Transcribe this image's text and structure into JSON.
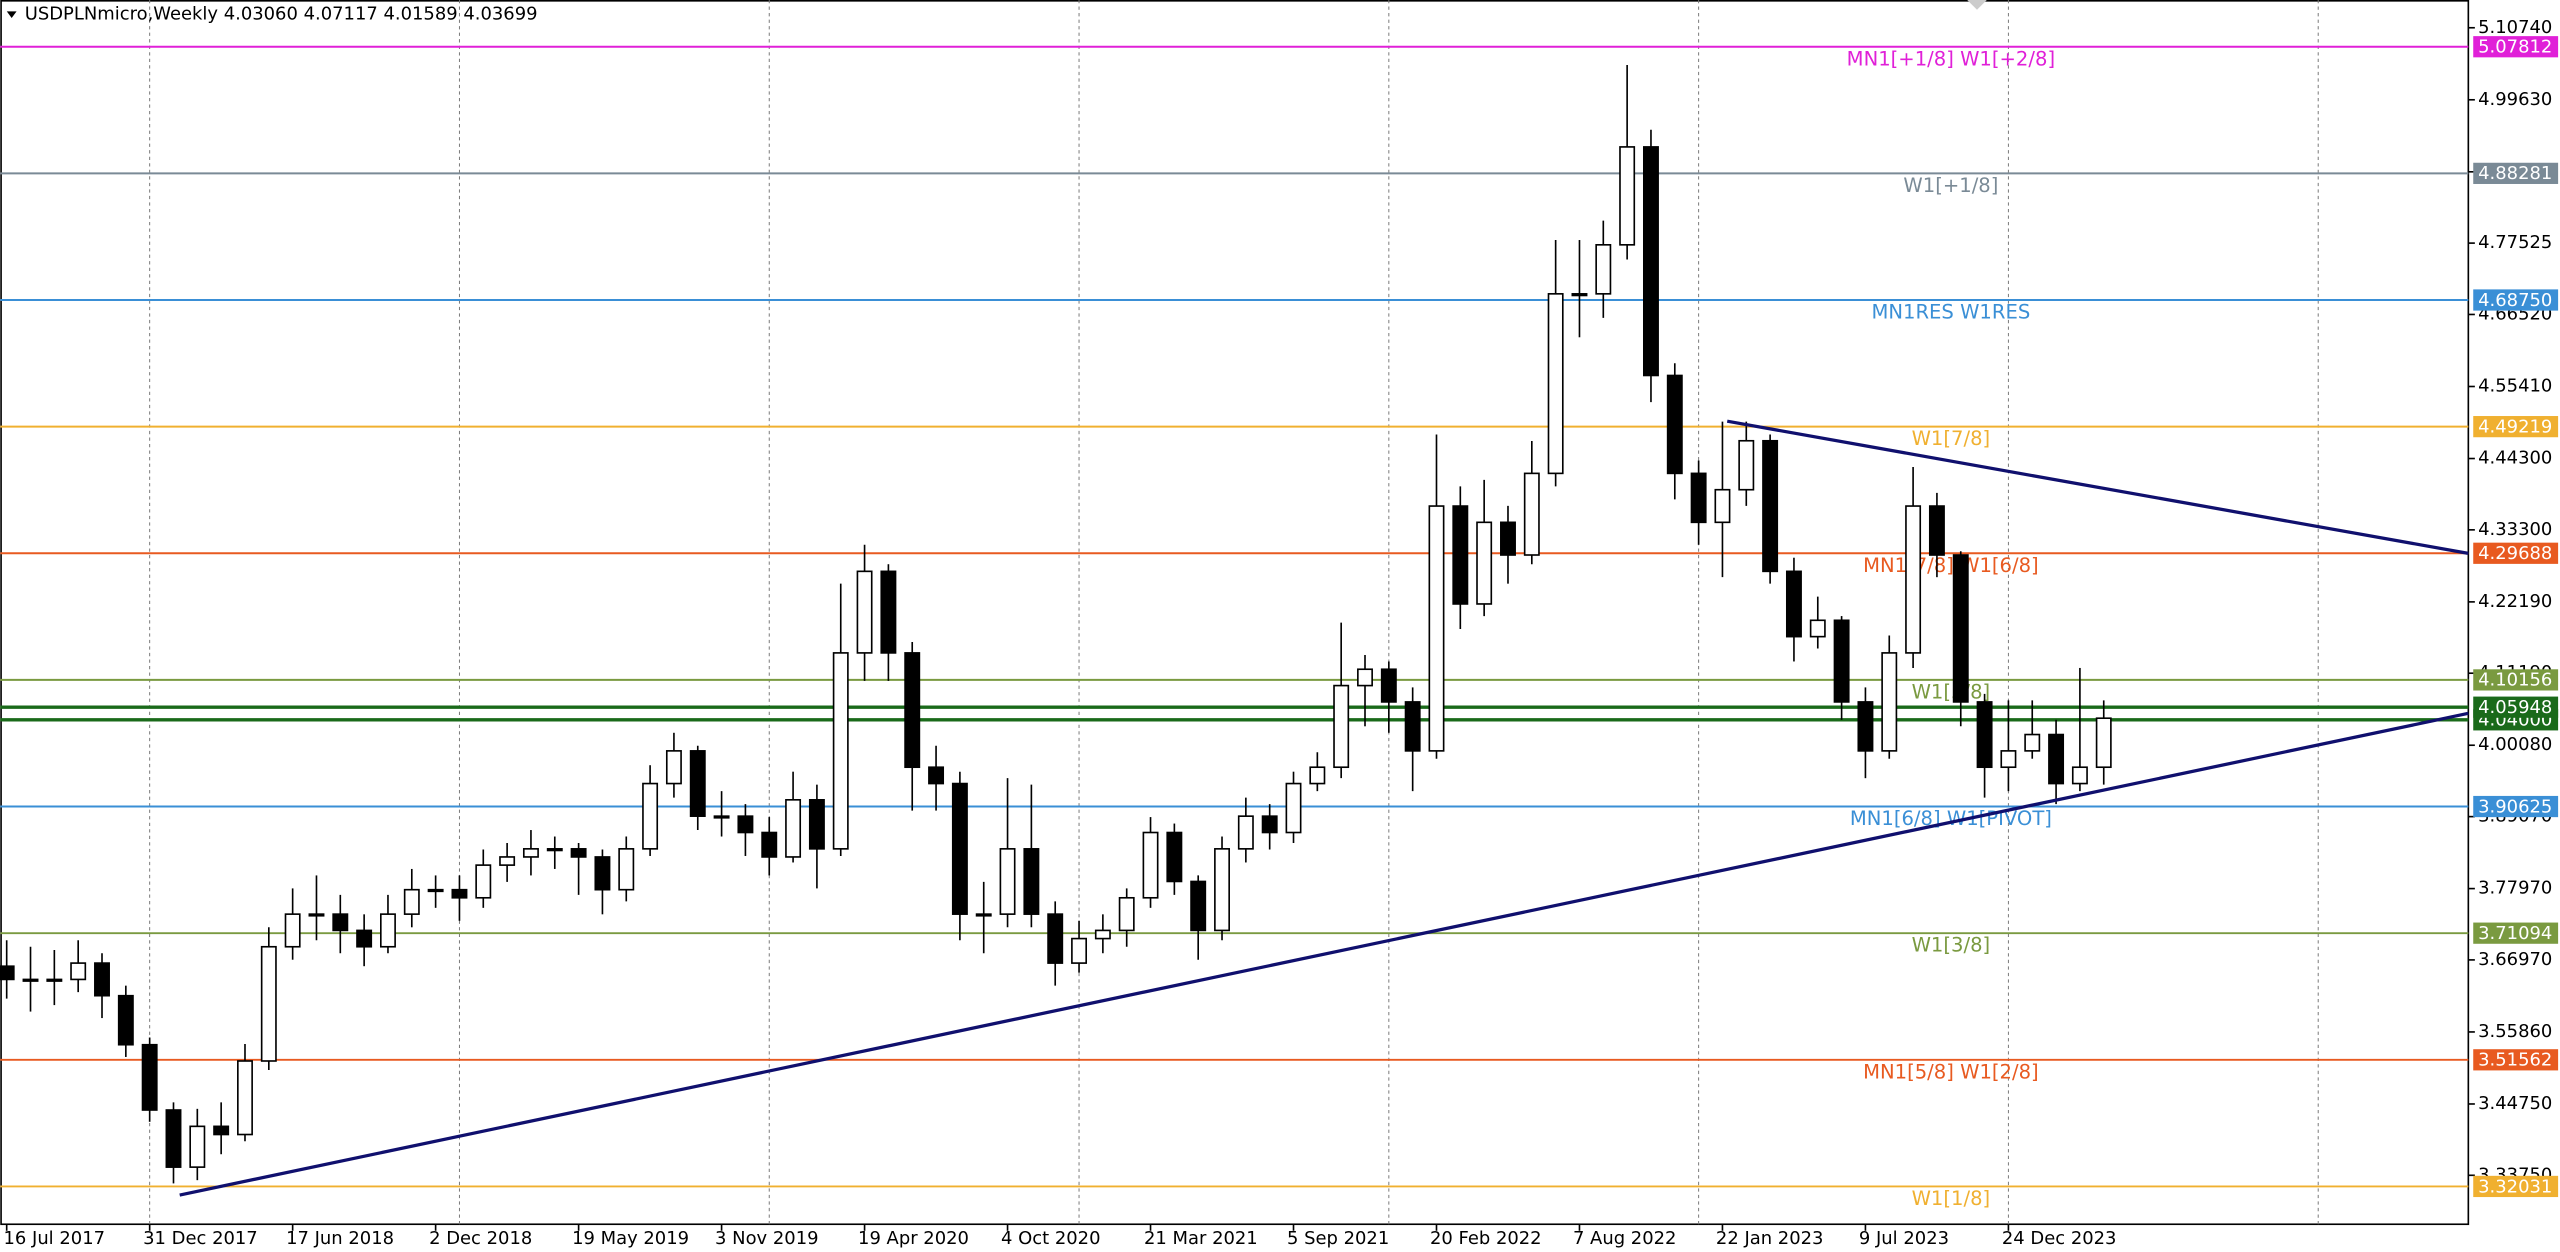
{
  "chart_data": {
    "type": "candlestick",
    "title": "USDPLNmicro,Weekly 4.03060 4.07117 4.01589 4.03699",
    "xlim": [
      -0.27,
      103.3
    ],
    "ylim": [
      3.262,
      5.1502
    ],
    "yticks": [
      {
        "value": 5.1074,
        "label": "5.10740"
      },
      {
        "value": 4.9963,
        "label": "4.99630"
      },
      {
        "value": 4.8852,
        "label": "4.88520"
      },
      {
        "value": 4.77525,
        "label": "4.77525"
      },
      {
        "value": 4.6652,
        "label": "4.66520"
      },
      {
        "value": 4.5541,
        "label": "4.55410"
      },
      {
        "value": 4.443,
        "label": "4.44300"
      },
      {
        "value": 4.333,
        "label": "4.33300"
      },
      {
        "value": 4.2219,
        "label": "4.22190"
      },
      {
        "value": 4.1119,
        "label": "4.11190"
      },
      {
        "value": 4.0008,
        "label": "4.00080"
      },
      {
        "value": 3.8907,
        "label": "3.89070"
      },
      {
        "value": 3.7797,
        "label": "3.77970"
      },
      {
        "value": 3.6697,
        "label": "3.66970"
      },
      {
        "value": 3.5586,
        "label": "3.55860"
      },
      {
        "value": 3.4475,
        "label": "3.44750"
      },
      {
        "value": 3.3375,
        "label": "3.33750"
      }
    ],
    "xticks": [
      {
        "value": 0,
        "label": "16 Jul 2017"
      },
      {
        "value": 6,
        "label": "31 Dec 2017"
      },
      {
        "value": 12,
        "label": "17 Jun 2018"
      },
      {
        "value": 18,
        "label": "2 Dec 2018"
      },
      {
        "value": 24,
        "label": "19 May 2019"
      },
      {
        "value": 30,
        "label": "3 Nov 2019"
      },
      {
        "value": 36,
        "label": "19 Apr 2020"
      },
      {
        "value": 42,
        "label": "4 Oct 2020"
      },
      {
        "value": 48,
        "label": "21 Mar 2021"
      },
      {
        "value": 54,
        "label": "5 Sep 2021"
      },
      {
        "value": 60,
        "label": "20 Feb 2022"
      },
      {
        "value": 66,
        "label": "7 Aug 2022"
      },
      {
        "value": 72,
        "label": "22 Jan 2023"
      },
      {
        "value": 78,
        "label": "9 Jul 2023"
      },
      {
        "value": 84,
        "label": "24 Dec 2023"
      }
    ],
    "xgrid": [
      6,
      19,
      32,
      45,
      58,
      71,
      84,
      97
    ],
    "levels": [
      {
        "price": 5.07812,
        "text": "MN1[+1/8] W1[+2/8]",
        "color": "#e020d8"
      },
      {
        "price": 4.88281,
        "text": "W1[+1/8]",
        "color": "#7a8a96"
      },
      {
        "price": {
          "value": 4.6875,
          "label": "4.68750"
        },
        "text": "MN1RES W1RES",
        "color": "#3a8fd6"
      },
      {
        "price": 4.49219,
        "text": "W1[7/8]",
        "color": "#f0b030"
      },
      {
        "price": 4.29688,
        "text": "MN1[7/8] W1[6/8]",
        "color": "#e85a20"
      },
      {
        "price": 4.10156,
        "text": "W1[5/8]",
        "color": "#7a9a40"
      },
      {
        "price": {
          "value": 4.04,
          "label": "4.04000"
        },
        "color": "#1a6a1a"
      },
      {
        "price": 4.05948,
        "color": "#1a6a1a"
      },
      {
        "price": 3.90625,
        "text": "MN1[6/8] W1[PIVOT]",
        "color": "#3a8fd6"
      },
      {
        "price": 3.71094,
        "text": "W1[3/8]",
        "color": "#7a9a40"
      },
      {
        "price": 3.51562,
        "text": "MN1[5/8] W1[2/8]",
        "color": "#e85a20"
      },
      {
        "price": 3.32031,
        "text": "W1[1/8]",
        "color": "#f0b030"
      }
    ],
    "trendlines": [
      {
        "color": "#10106e",
        "points": [
          [
            7.26,
            3.307
          ],
          [
            103.3,
            4.05
          ]
        ]
      },
      {
        "color": "#10106e",
        "points": [
          [
            72.2,
            4.5006
          ],
          [
            103.3,
            4.2967
          ]
        ]
      }
    ],
    "candles": [
      [
        3.66,
        3.7,
        3.61,
        3.6396
      ],
      [
        3.6396,
        3.69,
        3.59,
        3.6396
      ],
      [
        3.6396,
        3.685,
        3.6,
        3.6396
      ],
      [
        3.6396,
        3.7,
        3.62,
        3.6648
      ],
      [
        3.6648,
        3.68,
        3.58,
        3.6145
      ],
      [
        3.6145,
        3.63,
        3.52,
        3.5389
      ],
      [
        3.5389,
        3.55,
        3.42,
        3.4382
      ],
      [
        3.4382,
        3.45,
        3.325,
        3.3501
      ],
      [
        3.3501,
        3.44,
        3.33,
        3.413
      ],
      [
        3.413,
        3.45,
        3.37,
        3.4004
      ],
      [
        3.4004,
        3.54,
        3.39,
        3.5138
      ],
      [
        3.5138,
        3.72,
        3.5,
        3.69
      ],
      [
        3.69,
        3.78,
        3.67,
        3.7403
      ],
      [
        3.7403,
        3.8,
        3.7,
        3.7403
      ],
      [
        3.7403,
        3.77,
        3.68,
        3.7152
      ],
      [
        3.7152,
        3.74,
        3.66,
        3.69
      ],
      [
        3.69,
        3.77,
        3.68,
        3.7403
      ],
      [
        3.7403,
        3.81,
        3.72,
        3.778
      ],
      [
        3.778,
        3.8,
        3.75,
        3.778
      ],
      [
        3.778,
        3.8,
        3.73,
        3.7655
      ],
      [
        3.7655,
        3.84,
        3.75,
        3.8159
      ],
      [
        3.8159,
        3.85,
        3.79,
        3.8285
      ],
      [
        3.8285,
        3.87,
        3.8,
        3.841
      ],
      [
        3.841,
        3.86,
        3.81,
        3.841
      ],
      [
        3.841,
        3.85,
        3.77,
        3.8285
      ],
      [
        3.8285,
        3.84,
        3.74,
        3.778
      ],
      [
        3.778,
        3.86,
        3.76,
        3.841
      ],
      [
        3.841,
        3.97,
        3.83,
        3.9417
      ],
      [
        3.9417,
        4.02,
        3.92,
        3.9921
      ],
      [
        3.9921,
        4.0,
        3.87,
        3.8914
      ],
      [
        3.8914,
        3.93,
        3.86,
        3.8914
      ],
      [
        3.8914,
        3.91,
        3.83,
        3.8662
      ],
      [
        3.8662,
        3.89,
        3.8,
        3.8285
      ],
      [
        3.8285,
        3.96,
        3.82,
        3.9166
      ],
      [
        3.9166,
        3.94,
        3.78,
        3.841
      ],
      [
        3.841,
        4.25,
        3.83,
        4.1432
      ],
      [
        4.1432,
        4.31,
        4.1,
        4.269
      ],
      [
        4.269,
        4.28,
        4.1,
        4.1432
      ],
      [
        4.1432,
        4.16,
        3.9,
        3.9669
      ],
      [
        3.9669,
        4.0,
        3.9,
        3.9417
      ],
      [
        3.9417,
        3.96,
        3.7,
        3.7403
      ],
      [
        3.7403,
        3.79,
        3.68,
        3.7403
      ],
      [
        3.7403,
        3.95,
        3.72,
        3.841
      ],
      [
        3.841,
        3.94,
        3.72,
        3.7403
      ],
      [
        3.7403,
        3.76,
        3.63,
        3.6648
      ],
      [
        3.6648,
        3.73,
        3.65,
        3.7026
      ],
      [
        3.7026,
        3.74,
        3.68,
        3.7152
      ],
      [
        3.7152,
        3.78,
        3.69,
        3.7655
      ],
      [
        3.7655,
        3.89,
        3.75,
        3.8662
      ],
      [
        3.8662,
        3.88,
        3.77,
        3.7907
      ],
      [
        3.7907,
        3.8,
        3.67,
        3.7152
      ],
      [
        3.7152,
        3.86,
        3.7,
        3.841
      ],
      [
        3.841,
        3.92,
        3.82,
        3.8914
      ],
      [
        3.8914,
        3.91,
        3.84,
        3.8662
      ],
      [
        3.8662,
        3.96,
        3.85,
        3.9417
      ],
      [
        3.9417,
        3.99,
        3.93,
        3.9669
      ],
      [
        3.9669,
        4.19,
        3.95,
        4.0928
      ],
      [
        4.0928,
        4.14,
        4.03,
        4.118
      ],
      [
        4.118,
        4.13,
        4.02,
        4.0676
      ],
      [
        4.0676,
        4.09,
        3.93,
        3.9921
      ],
      [
        3.9921,
        4.48,
        3.98,
        4.3697
      ],
      [
        4.3697,
        4.4,
        4.18,
        4.2187
      ],
      [
        4.2187,
        4.41,
        4.2,
        4.3446
      ],
      [
        4.3446,
        4.37,
        4.25,
        4.2942
      ],
      [
        4.2942,
        4.47,
        4.28,
        4.4201
      ],
      [
        4.4201,
        4.78,
        4.4,
        4.697
      ],
      [
        4.697,
        4.78,
        4.63,
        4.697
      ],
      [
        4.697,
        4.81,
        4.66,
        4.7726
      ],
      [
        4.7726,
        5.05,
        4.75,
        4.9236
      ],
      [
        4.9236,
        4.95,
        4.53,
        4.5711
      ],
      [
        4.5711,
        4.59,
        4.38,
        4.4201
      ],
      [
        4.4201,
        4.44,
        4.31,
        4.3446
      ],
      [
        4.3446,
        4.5,
        4.26,
        4.3949
      ],
      [
        4.3949,
        4.5,
        4.37,
        4.4704
      ],
      [
        4.4704,
        4.48,
        4.25,
        4.269
      ],
      [
        4.269,
        4.29,
        4.13,
        4.1683
      ],
      [
        4.1683,
        4.23,
        4.15,
        4.1935
      ],
      [
        4.1935,
        4.2,
        4.04,
        4.0676
      ],
      [
        4.0676,
        4.09,
        3.95,
        3.9921
      ],
      [
        3.9921,
        4.17,
        3.98,
        4.1432
      ],
      [
        4.1432,
        4.43,
        4.12,
        4.3697
      ],
      [
        4.3697,
        4.39,
        4.26,
        4.2942
      ],
      [
        4.2942,
        4.3,
        4.03,
        4.0676
      ],
      [
        4.0676,
        4.08,
        3.92,
        3.9669
      ],
      [
        3.9669,
        4.07,
        3.93,
        3.9921
      ],
      [
        3.9921,
        4.07,
        3.98,
        4.0173
      ],
      [
        4.0173,
        4.04,
        3.91,
        3.9417
      ],
      [
        3.9417,
        4.12,
        3.93,
        3.9669
      ],
      [
        3.9669,
        4.07,
        3.94,
        4.0425
      ]
    ]
  }
}
